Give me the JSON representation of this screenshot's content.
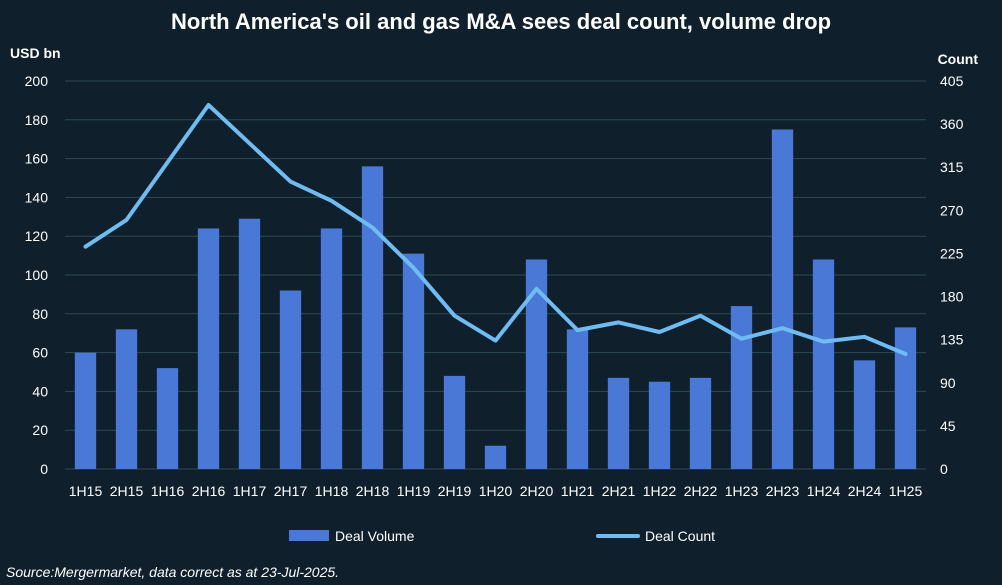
{
  "chart_data": {
    "type": "bar",
    "title": "North America's oil and gas M&A sees deal count, volume drop",
    "categories": [
      "1H15",
      "2H15",
      "1H16",
      "2H16",
      "1H17",
      "2H17",
      "1H18",
      "2H18",
      "1H19",
      "2H19",
      "1H20",
      "2H20",
      "1H21",
      "2H21",
      "1H22",
      "2H22",
      "1H23",
      "2H23",
      "1H24",
      "2H24",
      "1H25"
    ],
    "series": [
      {
        "name": "Deal Volume",
        "type": "bar",
        "axis": "left",
        "color": "#4a78d6",
        "values": [
          60,
          72,
          52,
          124,
          129,
          92,
          124,
          156,
          111,
          48,
          12,
          108,
          72,
          47,
          45,
          47,
          84,
          175,
          108,
          56,
          73
        ]
      },
      {
        "name": "Deal Count",
        "type": "line",
        "axis": "right",
        "color": "#6fbcf2",
        "values": [
          232,
          260,
          320,
          380,
          340,
          300,
          280,
          252,
          210,
          160,
          134,
          188,
          145,
          153,
          143,
          160,
          136,
          147,
          133,
          138,
          120
        ]
      }
    ],
    "ylabel_left": "USD bn",
    "ylabel_right": "Count",
    "ylim_left": [
      0,
      200
    ],
    "ylim_right": [
      0,
      405
    ],
    "yticks_left": [
      0,
      20,
      40,
      60,
      80,
      100,
      120,
      140,
      160,
      180,
      200
    ],
    "yticks_right": [
      0,
      45,
      90,
      135,
      180,
      225,
      270,
      315,
      360,
      405
    ],
    "grid": true,
    "legend_position": "bottom-center",
    "source": "Source:Mergermarket, data correct as at 23-Jul-2025."
  }
}
